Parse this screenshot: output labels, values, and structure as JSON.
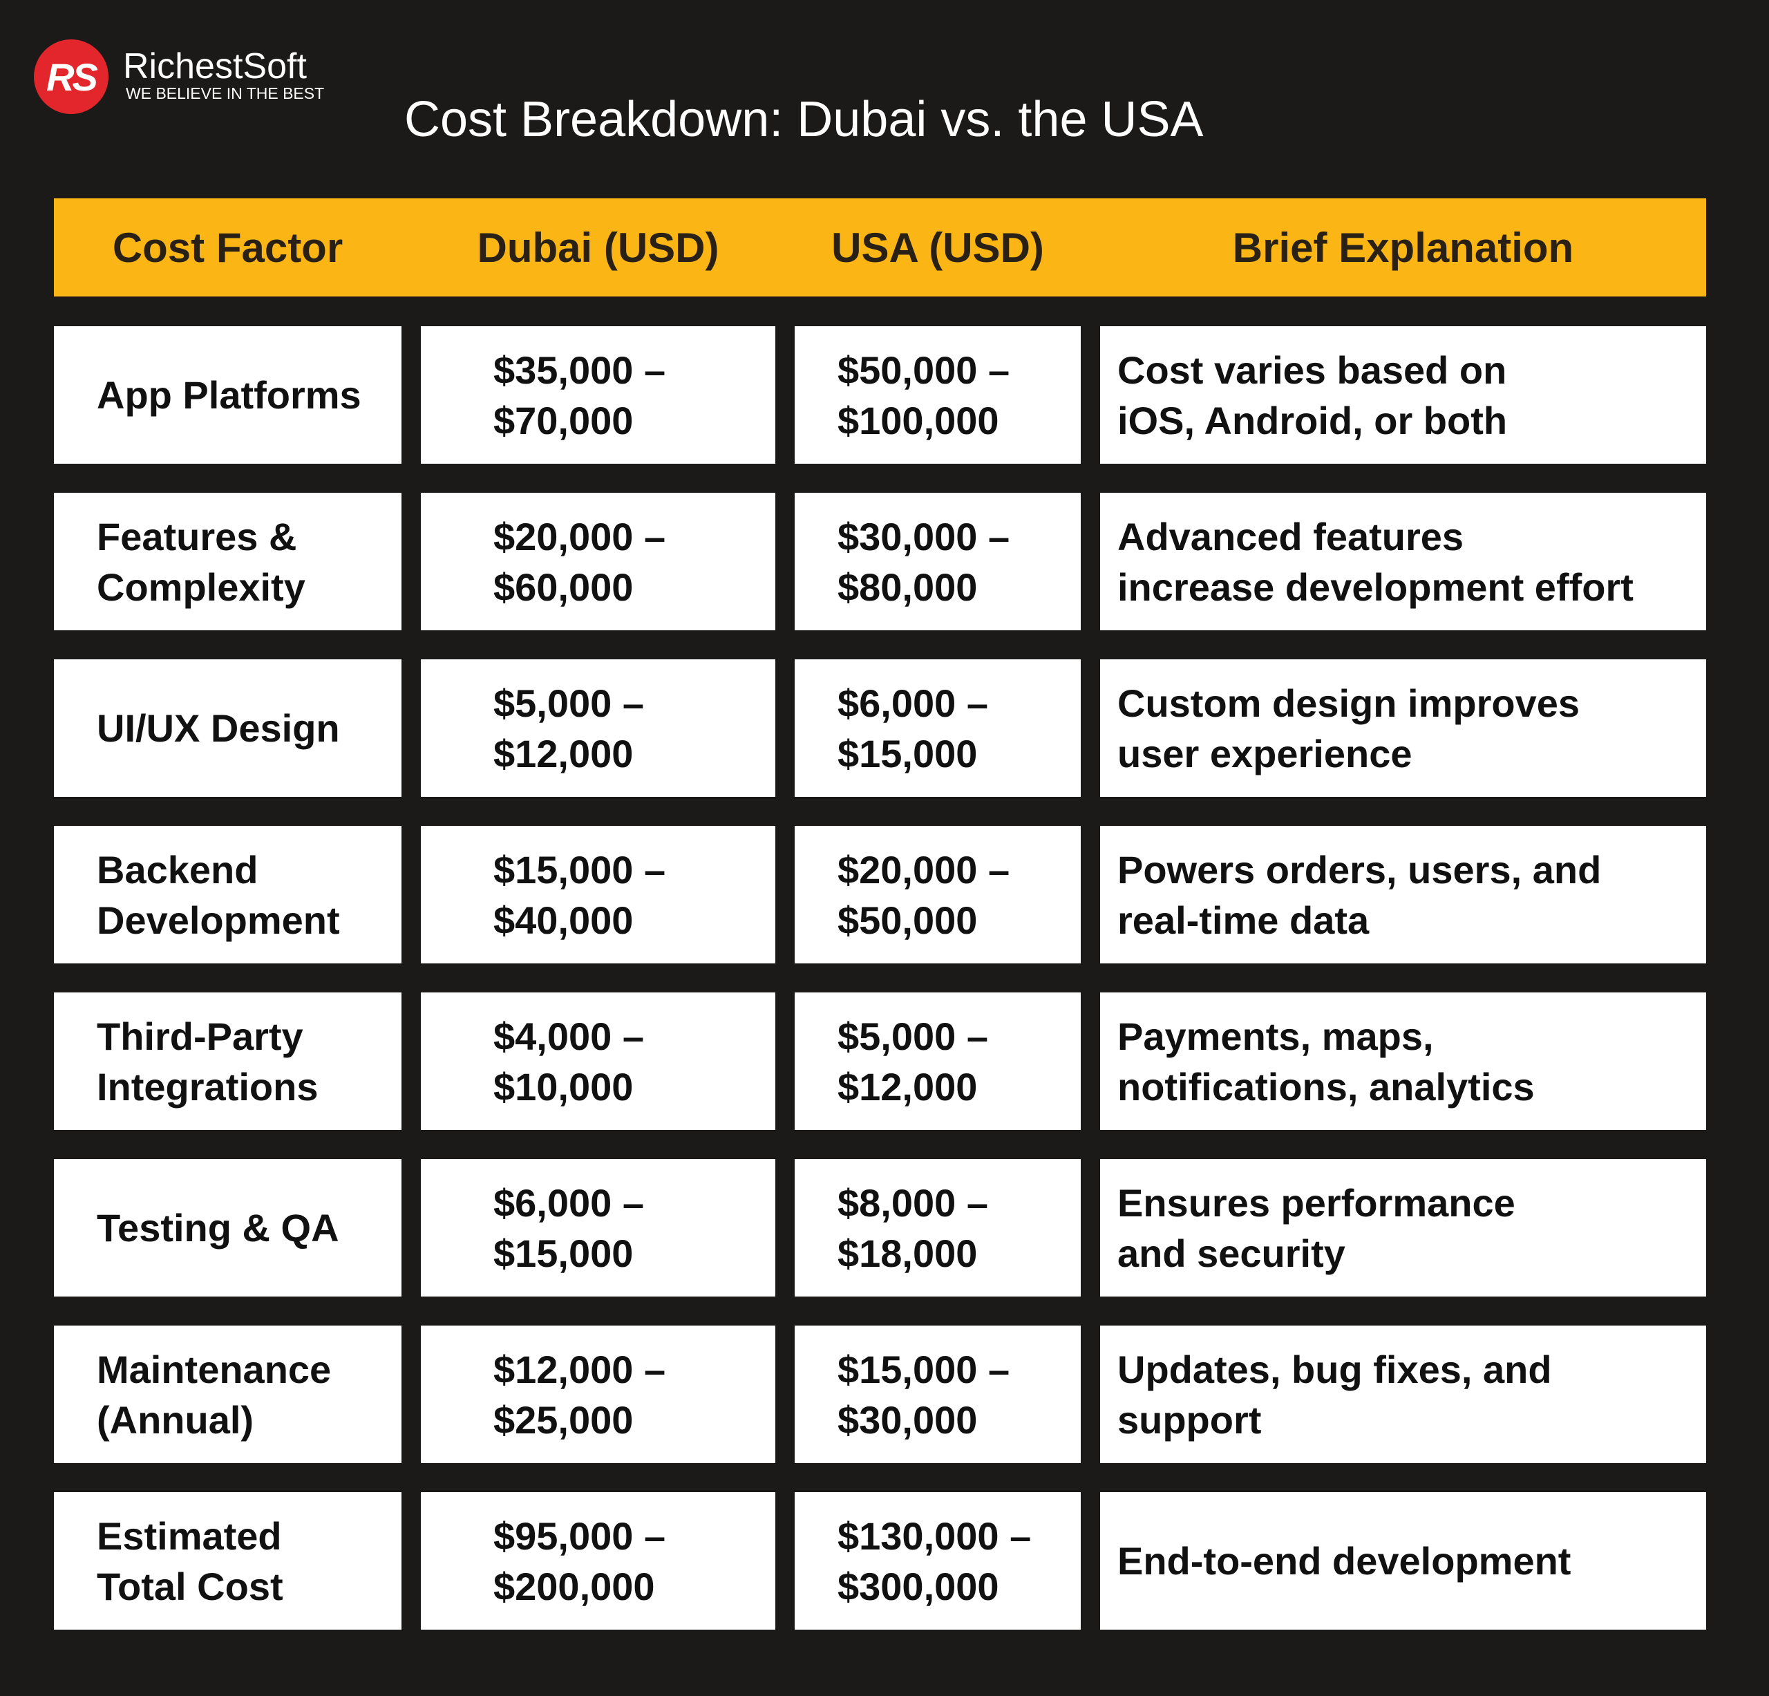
{
  "logo": {
    "mark": "RS",
    "name": "RichestSoft",
    "tagline": "WE BELIEVE IN THE BEST"
  },
  "title": "Cost Breakdown: Dubai vs. the USA",
  "table": {
    "header": [
      "Cost Factor",
      "Dubai (USD)",
      "USA (USD)",
      "Brief Explanation"
    ],
    "rows": [
      [
        [
          "App Platforms"
        ],
        [
          "$35,000 –",
          "$70,000"
        ],
        [
          "$50,000 –",
          "$100,000"
        ],
        [
          "Cost varies based on",
          "iOS, Android, or both"
        ]
      ],
      [
        [
          "Features &",
          "Complexity"
        ],
        [
          "$20,000 –",
          "$60,000"
        ],
        [
          "$30,000 –",
          "$80,000"
        ],
        [
          "Advanced features",
          "increase development effort"
        ]
      ],
      [
        [
          "UI/UX Design"
        ],
        [
          "$5,000 –",
          "$12,000"
        ],
        [
          "$6,000 –",
          "$15,000"
        ],
        [
          "Custom design improves",
          "user experience"
        ]
      ],
      [
        [
          "Backend",
          "Development"
        ],
        [
          "$15,000 –",
          "$40,000"
        ],
        [
          "$20,000 –",
          "$50,000"
        ],
        [
          "Powers orders, users, and",
          "real-time data"
        ]
      ],
      [
        [
          "Third-Party",
          "Integrations"
        ],
        [
          "$4,000 –",
          "$10,000"
        ],
        [
          "$5,000 –",
          "$12,000"
        ],
        [
          "Payments, maps,",
          "notifications, analytics"
        ]
      ],
      [
        [
          "Testing & QA"
        ],
        [
          "$6,000 –",
          "$15,000"
        ],
        [
          "$8,000 –",
          "$18,000"
        ],
        [
          "Ensures performance",
          "and security"
        ]
      ],
      [
        [
          "Maintenance",
          "(Annual)"
        ],
        [
          "$12,000 –",
          "$25,000"
        ],
        [
          "$15,000 –",
          "$30,000"
        ],
        [
          "Updates, bug fixes, and",
          "support"
        ]
      ],
      [
        [
          "Estimated",
          "Total Cost"
        ],
        [
          "$95,000 –",
          "$200,000"
        ],
        [
          "$130,000 –",
          "$300,000"
        ],
        [
          "End-to-end development"
        ]
      ]
    ]
  }
}
